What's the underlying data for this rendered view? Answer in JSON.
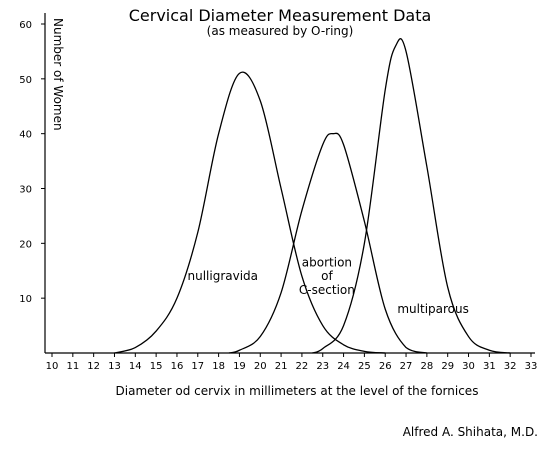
{
  "chart_data": {
    "type": "line",
    "title": "Cervical Diameter Measurement Data",
    "subtitle": "(as measured by O-ring)",
    "xlabel": "Diameter od cervix in millimeters at the level of the fornices",
    "ylabel": "Number of Women",
    "xlim": [
      10,
      33
    ],
    "ylim": [
      0,
      60
    ],
    "x_ticks": [
      10,
      11,
      12,
      13,
      14,
      15,
      16,
      17,
      18,
      19,
      20,
      21,
      22,
      23,
      24,
      25,
      26,
      27,
      28,
      29,
      30,
      31,
      32,
      33
    ],
    "y_ticks": [
      10,
      20,
      30,
      40,
      50,
      60
    ],
    "grid": false,
    "legend": "none",
    "line_color": "#000000",
    "series": [
      {
        "x": [
          13,
          14,
          15,
          16,
          17,
          18,
          19,
          20,
          21,
          22,
          23,
          24,
          25,
          26
        ],
        "y": [
          0,
          1,
          4,
          10,
          22,
          40,
          51,
          46,
          30,
          14,
          5,
          1.5,
          0.3,
          0
        ]
      },
      {
        "x": [
          18.5,
          19,
          20,
          21,
          22,
          23,
          23.5,
          24,
          25,
          26,
          27,
          28
        ],
        "y": [
          0,
          0.5,
          3,
          11,
          26,
          38,
          40,
          38,
          24,
          8,
          1,
          0
        ]
      },
      {
        "x": [
          22.5,
          23,
          24,
          25,
          26,
          26.5,
          27,
          28,
          29,
          30,
          31,
          32
        ],
        "y": [
          0,
          0.8,
          5,
          20,
          48,
          56,
          55,
          34,
          12,
          3,
          0.5,
          0
        ]
      }
    ],
    "annotations": [
      {
        "text": "nulligravida",
        "x": 18.2,
        "y": 13.3
      },
      {
        "text": "abortion",
        "x": 23.2,
        "y": 15.8
      },
      {
        "text": "of",
        "x": 23.2,
        "y": 13.3
      },
      {
        "text": "C-section",
        "x": 23.2,
        "y": 10.8
      },
      {
        "text": "multiparous",
        "x": 28.3,
        "y": 7.3
      }
    ]
  },
  "credit": "Alfred A. Shihata, M.D."
}
